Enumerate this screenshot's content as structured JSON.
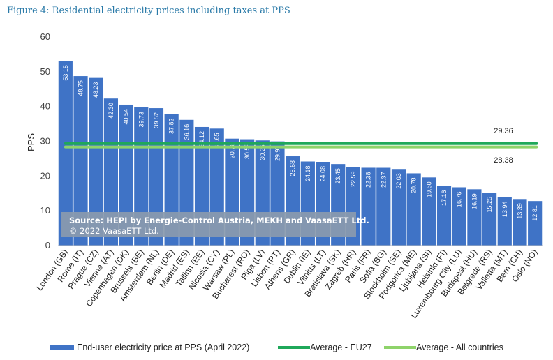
{
  "figure_title": "Figure 4: Residential electricity prices including taxes at PPS",
  "source": {
    "line1": "Source: HEPI by Energie-Control Austria, MEKH and VaasaETT Ltd.",
    "line2": "© 2022 VaasaETT Ltd."
  },
  "colors": {
    "bar": "#3f73c6",
    "avg_eu27": "#1fa85a",
    "avg_all": "#8ed36a",
    "title": "#2a7aa8"
  },
  "chart_data": {
    "type": "bar",
    "title": "Figure 4: Residential electricity prices including taxes at PPS",
    "ylabel": "PPS",
    "xlabel": "",
    "ylim": [
      0,
      60
    ],
    "yticks": [
      0,
      10,
      20,
      30,
      40,
      50,
      60
    ],
    "grid": false,
    "legend_position": "bottom",
    "categories": [
      "London (GB)",
      "Rome (IT)",
      "Prague (CZ)",
      "Vienna (AT)",
      "Copenhagen (DK)",
      "Brussels (BE)",
      "Amsterdam (NL)",
      "Berlin (DE)",
      "Madrid (ES)",
      "Tallinn (EE)",
      "Nicosia (CY)",
      "Warsaw (PL)",
      "Bucharest (RO)",
      "Riga (LV)",
      "Lisbon (PT)",
      "Athens (GR)",
      "Dublin (IE)",
      "Vilnius (LT)",
      "Bratislava (SK)",
      "Zagreb (HR)",
      "Paris (FR)",
      "Sofia (BG)",
      "Stockholm (SE)",
      "Podgorica (ME)",
      "Ljubljana (SI)",
      "Helsinki (FI)",
      "Luxembourg City (LU)",
      "Budapest (HU)",
      "Belgrade (RS)",
      "Valletta (MT)",
      "Bern (CH)",
      "Oslo (NO)"
    ],
    "series": [
      {
        "name": "End-user electricity price at PPS (April 2022)",
        "values": [
          53.15,
          48.75,
          48.23,
          42.3,
          40.54,
          39.73,
          39.52,
          37.82,
          36.16,
          34.12,
          33.65,
          30.76,
          30.59,
          30.25,
          29.97,
          25.68,
          24.18,
          24.08,
          23.45,
          22.59,
          22.38,
          22.37,
          22.03,
          20.78,
          19.6,
          17.16,
          16.76,
          16.19,
          15.25,
          13.94,
          13.39,
          12.81
        ]
      }
    ],
    "value_labels": [
      "53.15",
      "48.75",
      "48.23",
      "42.30",
      "40.54",
      "39.73",
      "39.52",
      "37.82",
      "36.16",
      "34.12",
      "33.65",
      "30.76",
      "30.59",
      "30.25",
      "29.97",
      "25.68",
      "24.18",
      "24.08",
      "23.45",
      "22.59",
      "22.38",
      "22.37",
      "22.03",
      "20.78",
      "19.60",
      "17.16",
      "16.76",
      "16.19",
      "15.25",
      "13.94",
      "13.39",
      "12.81"
    ],
    "average_lines": [
      {
        "name": "Average - EU27",
        "value": 29.36,
        "label": "29.36"
      },
      {
        "name": "Average - All countries",
        "value": 28.38,
        "label": "28.38"
      }
    ]
  }
}
